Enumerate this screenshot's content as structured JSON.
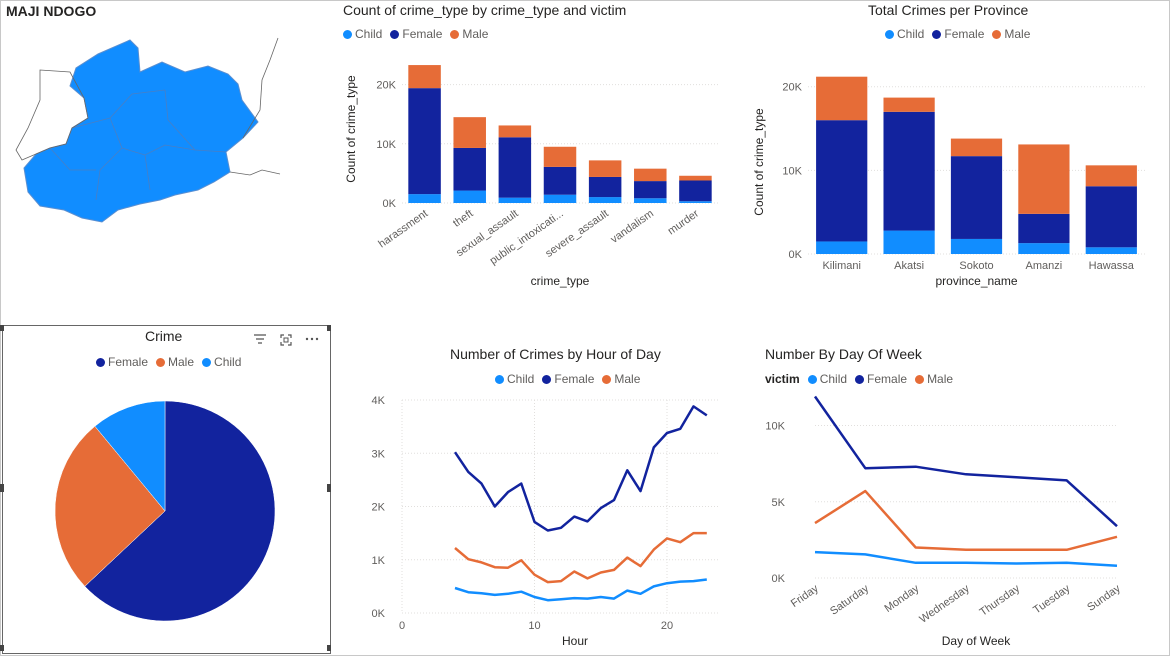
{
  "map": {
    "title": "MAJI NDOGO"
  },
  "colors": {
    "child": "#118dff",
    "female": "#12239e",
    "male": "#e66c37",
    "map_fill": "#118dff",
    "grid": "#e1dfdd"
  },
  "legend_labels": {
    "child": "Child",
    "female": "Female",
    "male": "Male",
    "victim": "victim"
  },
  "pie_header_icons": [
    "filter-icon",
    "focus-mode-icon",
    "more-options-icon"
  ],
  "chart_data": [
    {
      "id": "crime_type",
      "type": "bar",
      "stacked": true,
      "title": "Count of crime_type by crime_type and victim",
      "xlabel": "crime_type",
      "ylabel": "Count of crime_type",
      "categories": [
        "harassment",
        "theft",
        "sexual_assault",
        "public_intoxicati...",
        "severe_assault",
        "vandalism",
        "murder"
      ],
      "series": [
        {
          "name": "Child",
          "values": [
            1500,
            2100,
            900,
            1400,
            1000,
            800,
            300
          ]
        },
        {
          "name": "Female",
          "values": [
            17900,
            7200,
            10200,
            4700,
            3400,
            2900,
            3500
          ]
        },
        {
          "name": "Male",
          "values": [
            3900,
            5200,
            2000,
            3400,
            2800,
            2100,
            800
          ]
        }
      ],
      "ylim": [
        0,
        25000
      ],
      "yticks": [
        0,
        10000,
        20000
      ],
      "ytick_labels": [
        "0K",
        "10K",
        "20K"
      ],
      "legend": "top-left",
      "grid": true
    },
    {
      "id": "province",
      "type": "bar",
      "stacked": true,
      "title": "Total Crimes per Province",
      "xlabel": "province_name",
      "ylabel": "Count of crime_type",
      "categories": [
        "Kilimani",
        "Akatsi",
        "Sokoto",
        "Amanzi",
        "Hawassa"
      ],
      "series": [
        {
          "name": "Child",
          "values": [
            1500,
            2800,
            1800,
            1300,
            800
          ]
        },
        {
          "name": "Female",
          "values": [
            14500,
            14200,
            9900,
            3500,
            7300
          ]
        },
        {
          "name": "Male",
          "values": [
            5200,
            1700,
            2100,
            8300,
            2500
          ]
        }
      ],
      "ylim": [
        0,
        22000
      ],
      "yticks": [
        0,
        10000,
        20000
      ],
      "ytick_labels": [
        "0K",
        "10K",
        "20K"
      ],
      "legend": "top-left",
      "grid": true
    },
    {
      "id": "pie",
      "type": "pie",
      "title": "Crime",
      "categories": [
        "Female",
        "Male",
        "Child"
      ],
      "values": [
        63,
        26,
        11
      ],
      "legend": "top-center"
    },
    {
      "id": "hour",
      "type": "line",
      "title": "Number of Crimes by Hour of Day",
      "xlabel": "Hour",
      "ylabel": "",
      "x": [
        4,
        5,
        6,
        7,
        8,
        9,
        10,
        11,
        12,
        13,
        14,
        15,
        16,
        17,
        18,
        19,
        20,
        21,
        22,
        23
      ],
      "series": [
        {
          "name": "Child",
          "values": [
            470,
            390,
            370,
            340,
            360,
            400,
            300,
            240,
            260,
            280,
            270,
            300,
            270,
            420,
            360,
            500,
            560,
            590,
            600,
            630
          ]
        },
        {
          "name": "Female",
          "values": [
            3020,
            2650,
            2430,
            2000,
            2270,
            2430,
            1710,
            1550,
            1600,
            1810,
            1720,
            1970,
            2120,
            2680,
            2290,
            3110,
            3380,
            3460,
            3880,
            3710
          ]
        },
        {
          "name": "Male",
          "values": [
            1220,
            1010,
            950,
            860,
            850,
            990,
            720,
            580,
            600,
            780,
            650,
            760,
            810,
            1040,
            880,
            1190,
            1400,
            1330,
            1500,
            1500
          ]
        }
      ],
      "xlim": [
        0,
        24
      ],
      "ylim": [
        0,
        4000
      ],
      "xticks": [
        0,
        10,
        20
      ],
      "yticks": [
        0,
        1000,
        2000,
        3000,
        4000
      ],
      "ytick_labels": [
        "0K",
        "1K",
        "2K",
        "3K",
        "4K"
      ],
      "legend": "top-center",
      "grid": true
    },
    {
      "id": "weekday",
      "type": "line",
      "title": "Number By Day Of Week",
      "xlabel": "Day of Week",
      "ylabel": "",
      "categories": [
        "Friday",
        "Saturday",
        "Monday",
        "Wednesday",
        "Thursday",
        "Tuesday",
        "Sunday"
      ],
      "series": [
        {
          "name": "Child",
          "values": [
            1700,
            1550,
            1000,
            1000,
            950,
            1000,
            800
          ]
        },
        {
          "name": "Female",
          "values": [
            11900,
            7200,
            7300,
            6800,
            6600,
            6400,
            3400
          ]
        },
        {
          "name": "Male",
          "values": [
            3600,
            5700,
            2000,
            1850,
            1850,
            1850,
            2700
          ]
        }
      ],
      "ylim": [
        0,
        12000
      ],
      "yticks": [
        0,
        5000,
        10000
      ],
      "ytick_labels": [
        "0K",
        "5K",
        "10K"
      ],
      "legend": "top-left",
      "legend_title": "victim",
      "grid": true
    }
  ]
}
